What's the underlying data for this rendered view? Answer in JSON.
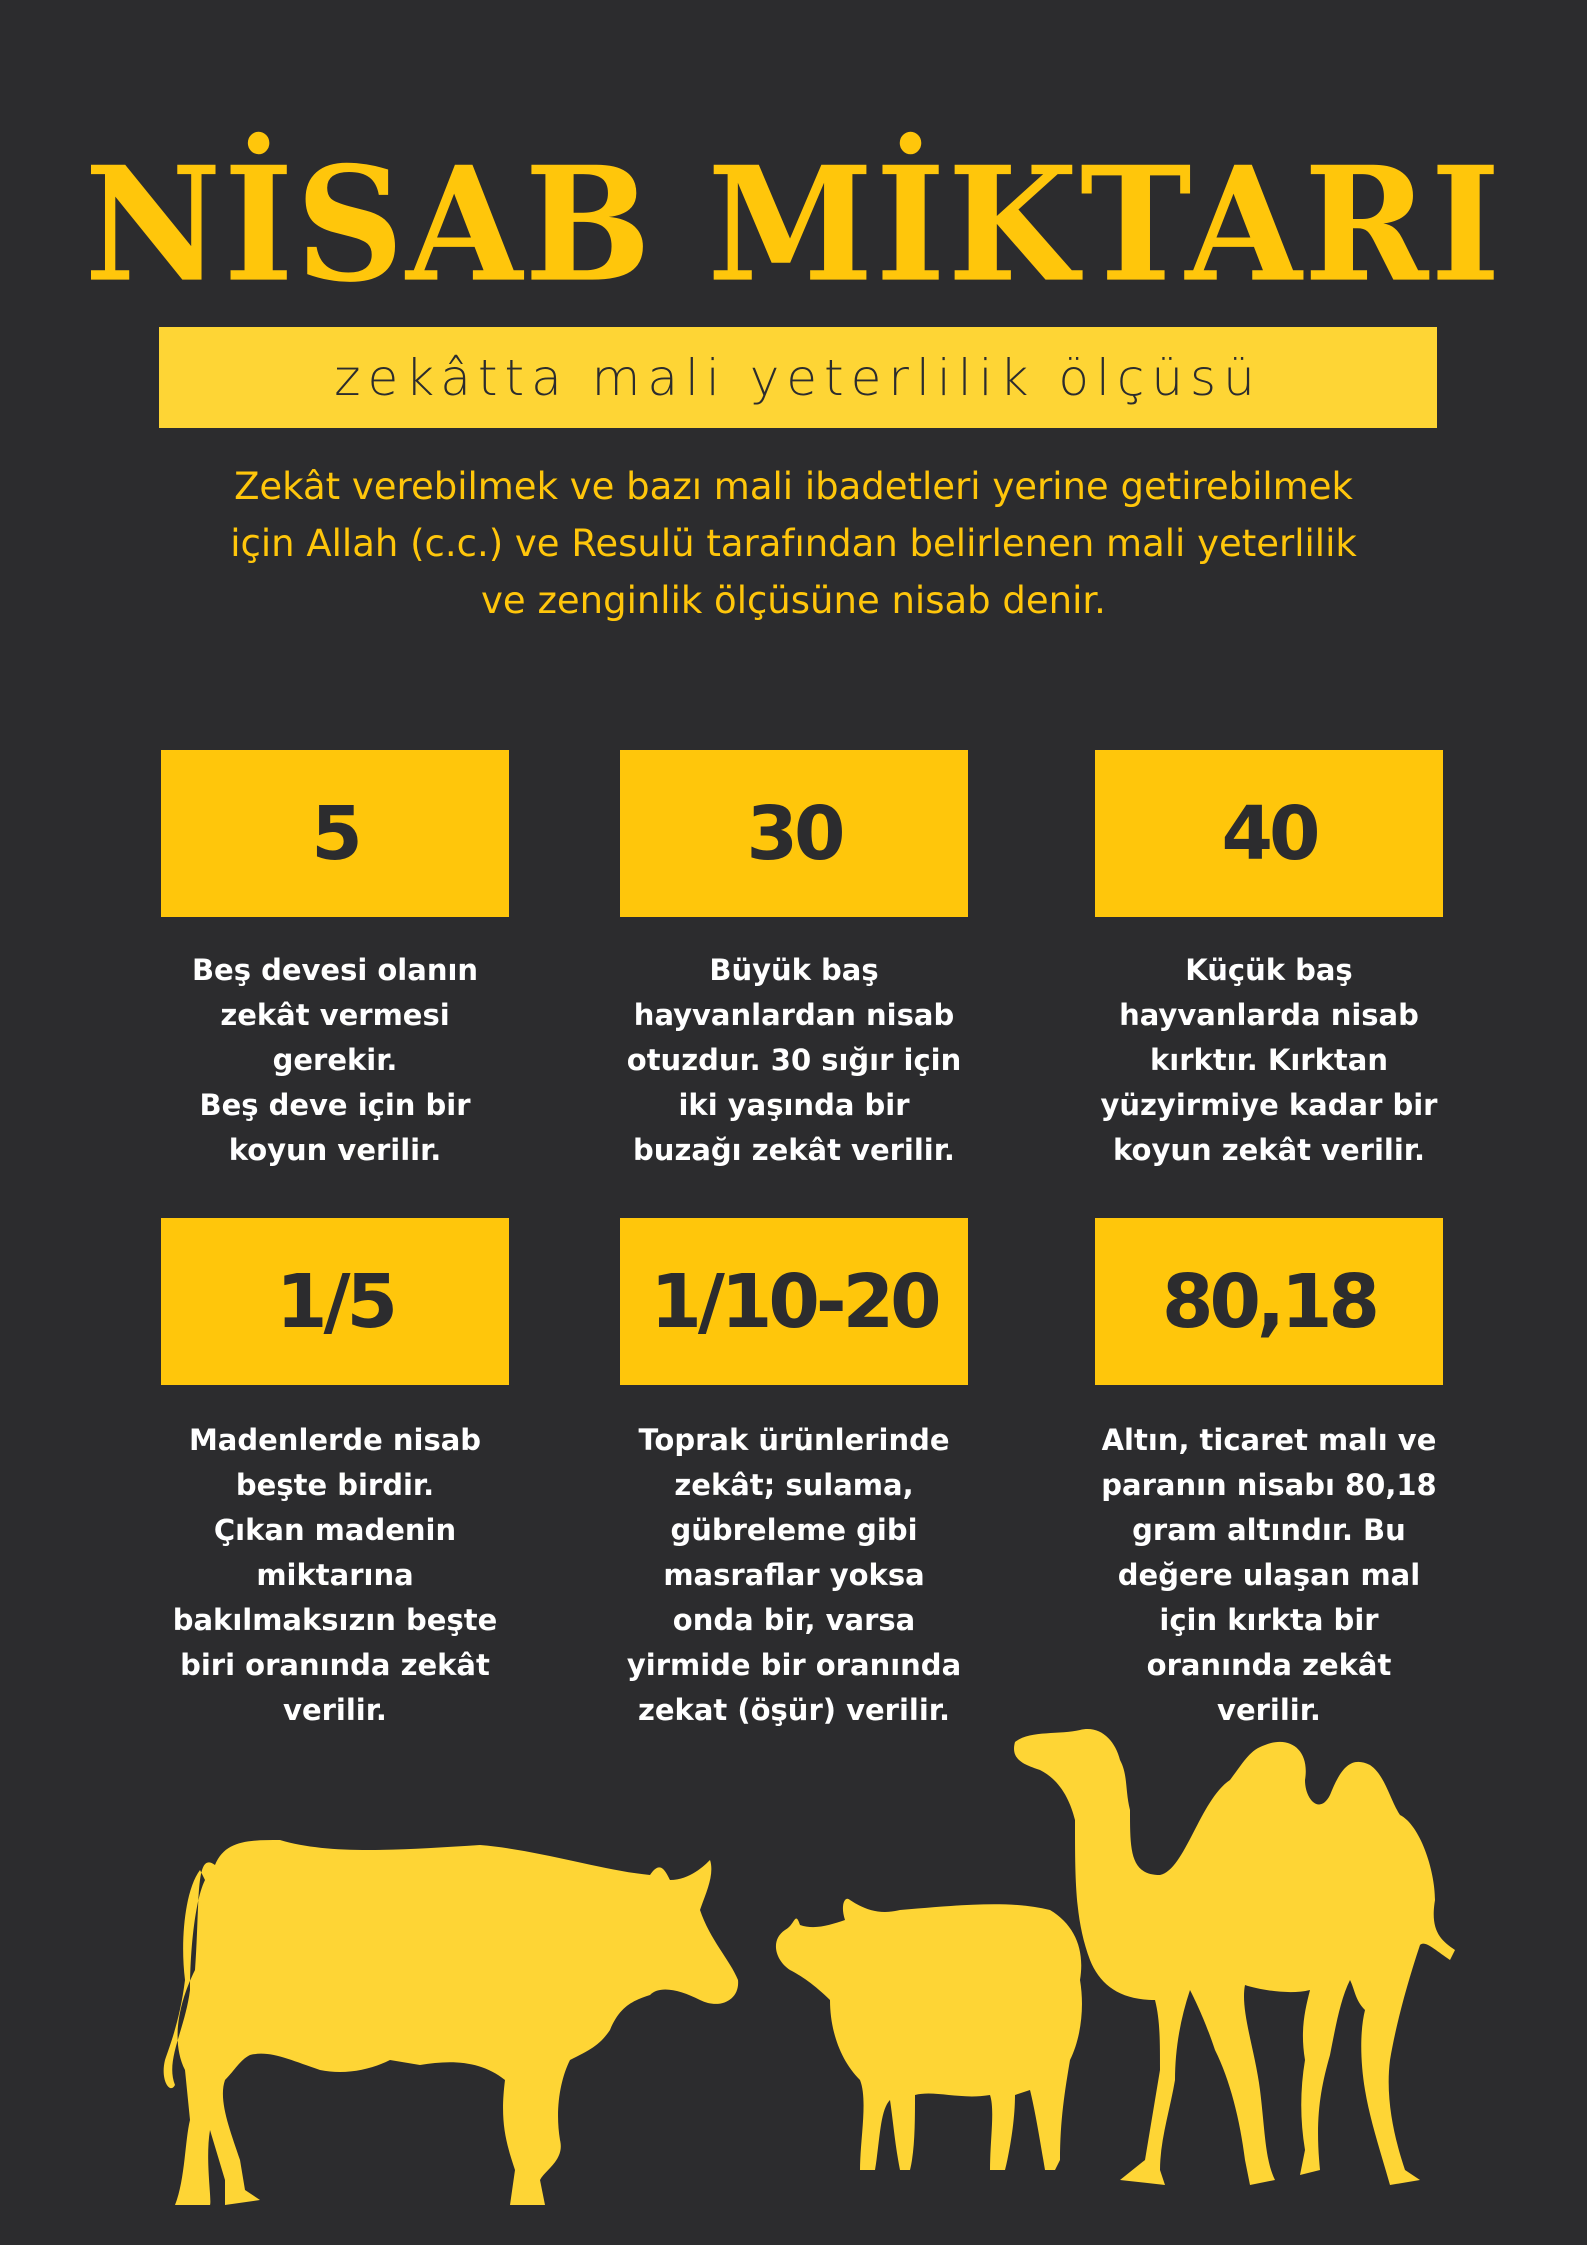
{
  "title": "NİSAB MİKTARI",
  "subtitle": "zekâtta mali yeterlilik ölçüsü",
  "intro_lines": [
    "Zekât verebilmek ve bazı mali ibadetleri yerine getirebilmek",
    "için Allah (c.c.) ve Resulü tarafından belirlenen mali yeterlilik",
    "ve zenginlik ölçüsüne nisab denir."
  ],
  "cards": [
    {
      "value": "5",
      "lines": [
        "Beş devesi olanın",
        "zekât vermesi",
        "gerekir.",
        "Beş deve için bir",
        "koyun verilir."
      ]
    },
    {
      "value": "30",
      "lines": [
        "Büyük baş",
        "hayvanlardan nisab",
        "otuzdur. 30 sığır için",
        "iki yaşında bir",
        "buzağı zekât verilir."
      ]
    },
    {
      "value": "40",
      "lines": [
        "Küçük baş",
        "hayvanlarda nisab",
        "kırktır. Kırktan",
        "yüzyirmiye kadar bir",
        "koyun zekât verilir."
      ]
    },
    {
      "value": "1/5",
      "lines": [
        "Madenlerde nisab",
        "beşte birdir.",
        "Çıkan madenin",
        "miktarına",
        "bakılmaksızın beşte",
        "biri oranında zekât",
        "verilir."
      ]
    },
    {
      "value": "1/10-20",
      "lines": [
        "Toprak ürünlerinde",
        "zekât; sulama,",
        "gübreleme gibi",
        "masraflar yoksa",
        "onda bir, varsa",
        "yirmide bir oranında",
        "zekat (öşür) verilir."
      ]
    },
    {
      "value": "80,18",
      "lines": [
        "Altın, ticaret malı ve",
        "paranın nisabı 80,18",
        "gram altındır. Bu",
        "değere ulaşan mal",
        "için kırkta bir",
        "oranında zekât",
        "verilir."
      ]
    }
  ],
  "illustrations": [
    "cow-silhouette",
    "sheep-silhouette",
    "camel-silhouette"
  ],
  "colors": {
    "background": "#2c2c2e",
    "accent": "#ffc60b",
    "subtitle_bar": "#fed535",
    "text": "#ffffff"
  }
}
